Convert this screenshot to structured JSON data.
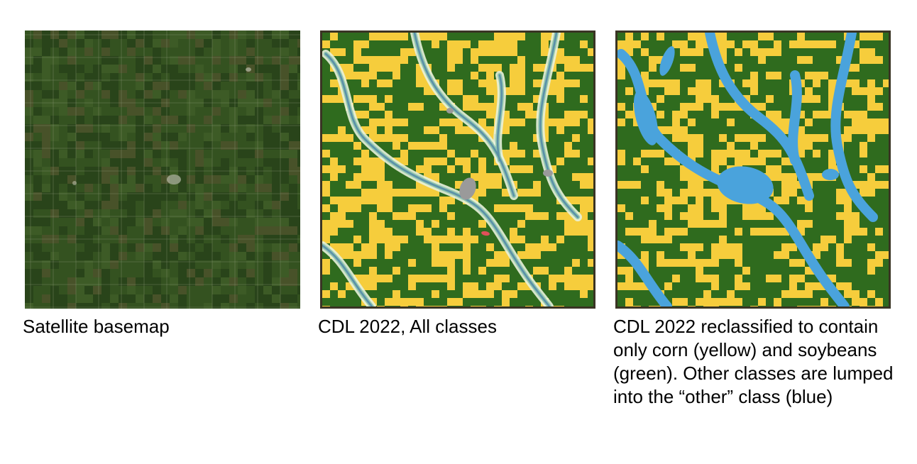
{
  "panels": [
    {
      "id": "satellite",
      "caption": "Satellite basemap",
      "palette": {
        "base": "#2e4a1c",
        "field_dark": "#26401a",
        "field_mid": "#3a5a24",
        "field_light": "#4a6a30",
        "field_brown": "#5e5a34",
        "road": "#8f9c7a",
        "town": "#cfcfc0"
      }
    },
    {
      "id": "cdl-all",
      "caption": "CDL 2022, All classes",
      "palette": {
        "corn": "#f6cd3c",
        "soy": "#2f6b1e",
        "water": "#5a8fa8",
        "wetland": "#8ec3b0",
        "grass": "#e8f2dc",
        "developed": "#9a9a9a",
        "urban": "#e0505a"
      }
    },
    {
      "id": "cdl-reclassified",
      "caption": "CDL 2022 reclassified to contain only corn (yellow) and soybeans (green). Other classes are lumped into the “other” class (blue)",
      "palette": {
        "corn": "#f6cd3c",
        "soy": "#2f6b1e",
        "other": "#4aa3dc"
      }
    }
  ]
}
